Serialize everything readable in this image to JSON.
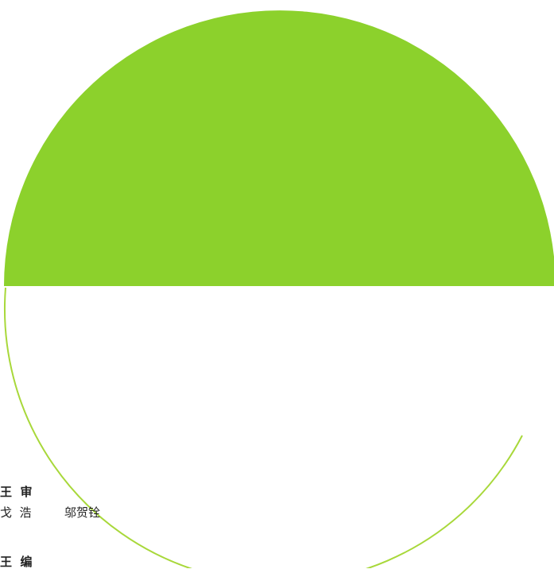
{
  "colors": {
    "accent_green": "#8fd32e",
    "outline_green": "#a8d83a",
    "background": "#ffffff",
    "text": "#222222"
  },
  "credits": {
    "line1": "王  审",
    "line2_left": "戈  浩",
    "line2_right": "邬贺铨",
    "line3": "王  编"
  }
}
